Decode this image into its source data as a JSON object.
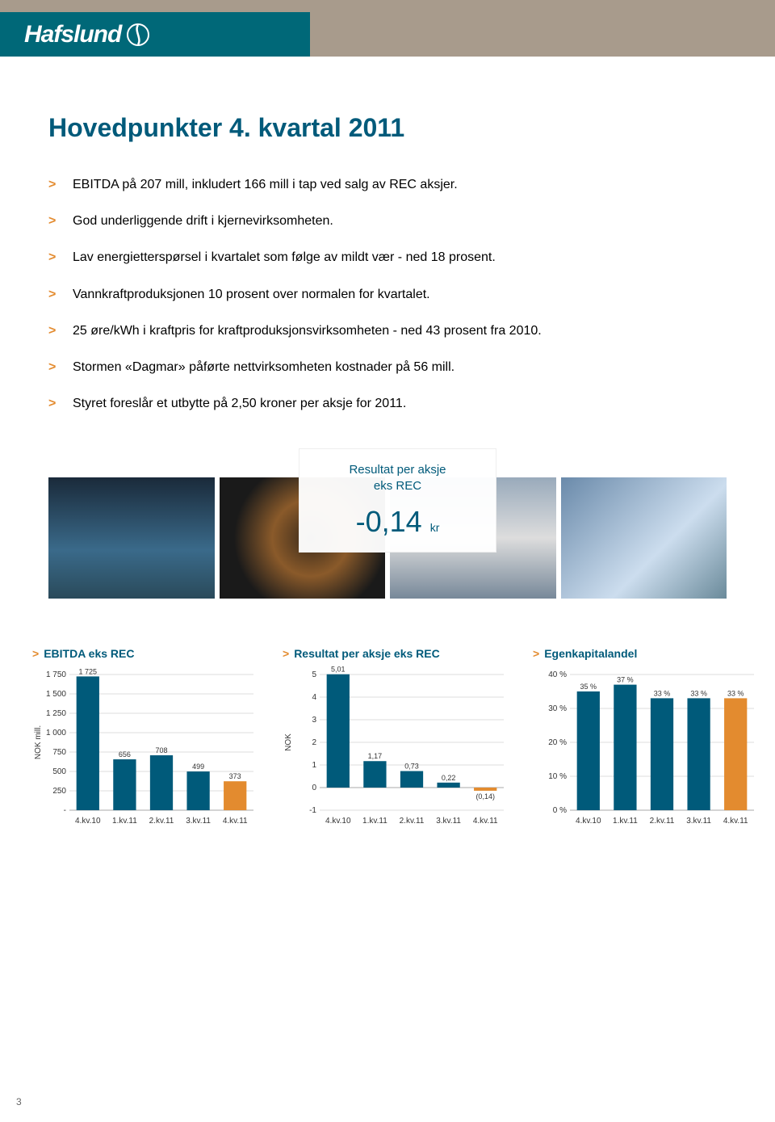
{
  "header": {
    "logo_text": "Hafslund"
  },
  "title": "Hovedpunkter 4. kvartal 2011",
  "bullets": [
    "EBITDA på 207 mill, inkludert 166 mill i tap ved salg av REC aksjer.",
    "God underliggende drift i kjernevirksomheten.",
    "Lav energietterspørsel i kvartalet som følge av mildt vær - ned 18 prosent.",
    "Vannkraftproduksjonen 10 prosent over normalen for kvartalet.",
    "25 øre/kWh i kraftpris for kraftproduksjonsvirksomheten - ned 43 prosent fra 2010.",
    "Stormen «Dagmar» påførte nettvirksomheten kostnader på 56 mill.",
    "Styret foreslår et utbytte på 2,50 kroner per aksje for 2011."
  ],
  "kpi": {
    "label1": "Resultat per aksje",
    "label2": "eks REC",
    "value": "-0,14",
    "unit": "kr"
  },
  "charts": {
    "colors": {
      "primary": "#005a7a",
      "accent": "#e38b2f",
      "axis": "#aaaaaa",
      "grid": "#dddddd",
      "text": "#333333",
      "background": "#ffffff"
    },
    "ebitda": {
      "title": "EBITDA eks REC",
      "type": "bar",
      "ylabel": "NOK mill.",
      "categories": [
        "4.kv.10",
        "1.kv.11",
        "2.kv.11",
        "3.kv.11",
        "4.kv.11"
      ],
      "values": [
        1725,
        656,
        708,
        499,
        373
      ],
      "data_labels": [
        "1 725",
        "656",
        "708",
        "499",
        "373"
      ],
      "accent_index": 4,
      "ylim": [
        0,
        1750
      ],
      "ytick_step": 250,
      "yticks": [
        "-",
        "250",
        "500",
        "750",
        "1 000",
        "1 250",
        "1 500",
        "1 750"
      ]
    },
    "eps": {
      "title": "Resultat per aksje eks REC",
      "type": "bar",
      "ylabel": "NOK",
      "categories": [
        "4.kv.10",
        "1.kv.11",
        "2.kv.11",
        "3.kv.11",
        "4.kv.11"
      ],
      "values": [
        5.01,
        1.17,
        0.73,
        0.22,
        -0.14
      ],
      "data_labels": [
        "5,01",
        "1,17",
        "0,73",
        "0,22",
        "(0,14)"
      ],
      "accent_index": 4,
      "ylim": [
        -1,
        5
      ],
      "ytick_step": 1,
      "yticks": [
        "-1",
        "0",
        "1",
        "2",
        "3",
        "4",
        "5"
      ]
    },
    "equity": {
      "title": "Egenkapitalandel",
      "type": "bar",
      "ylabel": "",
      "categories": [
        "4.kv.10",
        "1.kv.11",
        "2.kv.11",
        "3.kv.11",
        "4.kv.11"
      ],
      "values": [
        35,
        37,
        33,
        33,
        33
      ],
      "data_labels": [
        "35 %",
        "37 %",
        "33 %",
        "33 %",
        "33 %"
      ],
      "accent_index": 4,
      "ylim": [
        0,
        40
      ],
      "ytick_step": 10,
      "yticks": [
        "0 %",
        "10 %",
        "20 %",
        "30 %",
        "40 %"
      ]
    }
  },
  "page_number": "3"
}
